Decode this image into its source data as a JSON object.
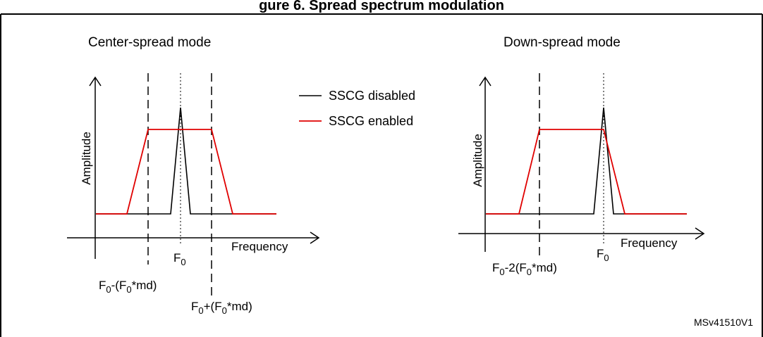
{
  "header": {
    "title": "gure 6. Spread spectrum modulation"
  },
  "panels": {
    "left": {
      "title": "Center-spread mode",
      "y_axis_label": "Amplitude",
      "x_axis_label": "Frequency",
      "f0_label_base": "F",
      "f0_label_sub": "0",
      "lower_marker": {
        "t1": "F",
        "s1": "0",
        "t2": "-(F",
        "s2": "0",
        "t3": "*md)"
      },
      "upper_marker": {
        "t1": "F",
        "s1": "0",
        "t2": "+(F",
        "s2": "0",
        "t3": "*md)"
      }
    },
    "right": {
      "title": "Down-spread mode",
      "y_axis_label": "Amplitude",
      "x_axis_label": "Frequency",
      "f0_label_base": "F",
      "f0_label_sub": "0",
      "lower_marker": {
        "t1": "F",
        "s1": "0",
        "t2": "-2(F",
        "s2": "0",
        "t3": "*md)"
      }
    }
  },
  "legend": {
    "items": [
      {
        "label": "SSCG disabled",
        "color": "#000000"
      },
      {
        "label": "SSCG enabled",
        "color": "#e00000"
      }
    ]
  },
  "reference": "MSv41510V1",
  "colors": {
    "disabled": "#000000",
    "enabled": "#e00000",
    "frame": "#000000"
  }
}
